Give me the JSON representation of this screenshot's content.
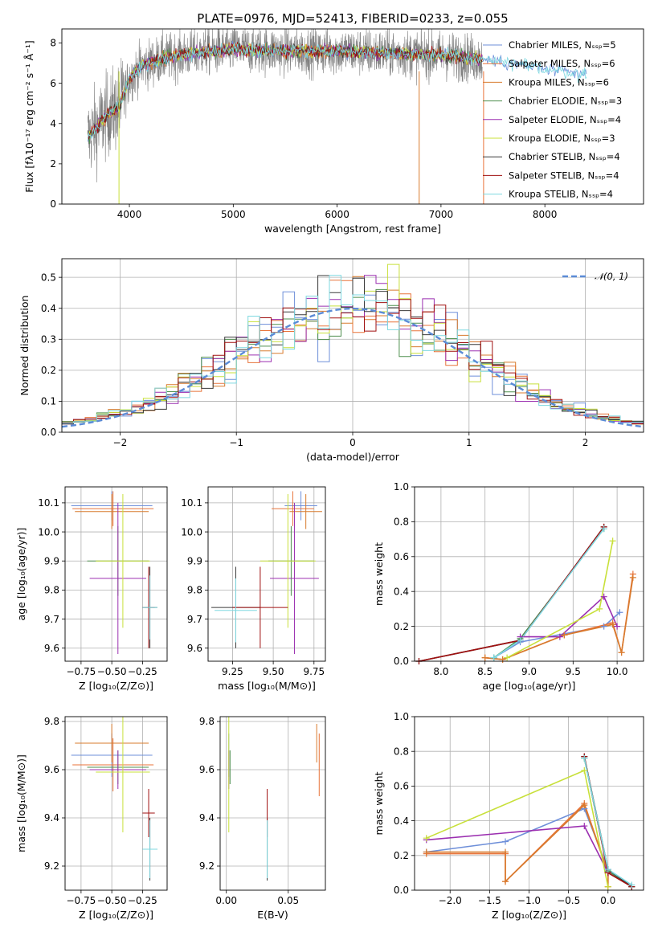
{
  "colors": [
    "#6e8fd9",
    "#e8733a",
    "#d87b2e",
    "#4f8f4f",
    "#9b2fb0",
    "#c8e03a",
    "#3a3a3a",
    "#a01010",
    "#7ed8e0"
  ],
  "chart_data": [
    {
      "id": "spectrum",
      "type": "line",
      "title": "PLATE=0976, MJD=52413, FIBERID=0233, z=0.055",
      "xlabel": "wavelength [Angstrom, rest frame]",
      "ylabel": "Flux [fλ10⁻¹⁷ erg cm⁻² s⁻¹ Å⁻¹]",
      "xlim": [
        3350,
        8950
      ],
      "ylim": [
        0,
        8.7
      ],
      "xticks": [
        4000,
        5000,
        6000,
        7000,
        8000
      ],
      "yticks": [
        0,
        2,
        4,
        6,
        8
      ],
      "legend_position": "upper-right",
      "series": [
        {
          "name": "Chabrier MILES, Nₛₛₚ=5"
        },
        {
          "name": "Salpeter MILES, Nₛₛₚ=6"
        },
        {
          "name": "Kroupa MILES, Nₛₛₚ=6"
        },
        {
          "name": "Chabrier ELODIE, Nₛₛₚ=3"
        },
        {
          "name": "Salpeter ELODIE, Nₛₛₚ=4"
        },
        {
          "name": "Kroupa ELODIE, Nₛₛₚ=3"
        },
        {
          "name": "Chabrier STELIB, Nₛₛₚ=4"
        },
        {
          "name": "Salpeter STELIB, Nₛₛₚ=4"
        },
        {
          "name": "Kroupa STELIB, Nₛₛₚ=4"
        }
      ],
      "continuum": {
        "x": [
          3600,
          3700,
          3800,
          3900,
          4000,
          4100,
          4300,
          4600,
          5000,
          5500,
          6000,
          6500,
          7000,
          7400,
          7900,
          8400
        ],
        "y": [
          3.3,
          3.9,
          4.5,
          4.8,
          6.2,
          6.8,
          7.2,
          7.5,
          7.7,
          7.6,
          7.6,
          7.5,
          7.4,
          7.2,
          6.8,
          6.4
        ]
      }
    },
    {
      "id": "residuals",
      "type": "histogram",
      "xlabel": "(data-model)/error",
      "ylabel": "Normed distribution",
      "xlim": [
        -2.5,
        2.5
      ],
      "ylim": [
        0,
        0.56
      ],
      "xticks": [
        -2,
        -1,
        0,
        1,
        2
      ],
      "yticks": [
        0.0,
        0.1,
        0.2,
        0.3,
        0.4,
        0.5
      ],
      "legend": "𝒩(0, 1)",
      "legend_position": "upper-right",
      "bin_width": 0.1,
      "bin_start": -2.5
    },
    {
      "id": "age-vs-Z",
      "type": "errorbar",
      "xlabel": "Z [log₁₀(Z/Z⊙)]",
      "ylabel": "age  [log₁₀(age/yr)]",
      "xlim": [
        -0.88,
        -0.05
      ],
      "ylim": [
        9.555,
        10.155
      ],
      "xticks": [
        -0.75,
        -0.5,
        -0.25
      ],
      "yticks": [
        9.6,
        9.7,
        9.8,
        9.9,
        10.0,
        10.1
      ],
      "points": [
        {
          "x": -0.5,
          "y": 10.09,
          "xerr": 0.33,
          "yerr": 0.05
        },
        {
          "x": -0.49,
          "y": 10.08,
          "xerr": 0.33,
          "yerr": 0.06
        },
        {
          "x": -0.5,
          "y": 10.07,
          "xerr": 0.3,
          "yerr": 0.06
        },
        {
          "x": -0.45,
          "y": 9.9,
          "xerr": 0.25,
          "yerr": 0.12
        },
        {
          "x": -0.45,
          "y": 9.84,
          "xerr": 0.23,
          "yerr": 0.26
        },
        {
          "x": -0.41,
          "y": 9.9,
          "xerr": 0.22,
          "yerr": 0.23
        },
        {
          "x": -0.19,
          "y": 9.74,
          "xerr": 0.06,
          "yerr": 0.14
        },
        {
          "x": -0.2,
          "y": 9.74,
          "xerr": 0.05,
          "yerr": 0.14
        },
        {
          "x": -0.19,
          "y": 9.74,
          "xerr": 0.06,
          "yerr": 0.11
        }
      ]
    },
    {
      "id": "age-vs-mass",
      "type": "errorbar",
      "xlabel": "mass [log₁₀(M/M⊙)]",
      "ylabel": "",
      "xlim": [
        9.1,
        9.82
      ],
      "ylim": [
        9.555,
        10.155
      ],
      "xticks": [
        9.25,
        9.5,
        9.75
      ],
      "yticks": [
        9.6,
        9.7,
        9.8,
        9.9,
        10.0,
        10.1
      ],
      "points": [
        {
          "x": 9.67,
          "y": 10.09,
          "xerr": 0.1,
          "yerr": 0.05
        },
        {
          "x": 9.62,
          "y": 10.08,
          "xerr": 0.13,
          "yerr": 0.06
        },
        {
          "x": 9.7,
          "y": 10.07,
          "xerr": 0.1,
          "yerr": 0.06
        },
        {
          "x": 9.61,
          "y": 9.9,
          "xerr": 0.14,
          "yerr": 0.12
        },
        {
          "x": 9.63,
          "y": 9.84,
          "xerr": 0.15,
          "yerr": 0.26
        },
        {
          "x": 9.59,
          "y": 9.9,
          "xerr": 0.17,
          "yerr": 0.23
        },
        {
          "x": 9.27,
          "y": 9.74,
          "xerr": 0.15,
          "yerr": 0.14
        },
        {
          "x": 9.42,
          "y": 9.74,
          "xerr": 0.17,
          "yerr": 0.14
        },
        {
          "x": 9.27,
          "y": 9.73,
          "xerr": 0.13,
          "yerr": 0.11
        }
      ]
    },
    {
      "id": "weight-vs-age",
      "type": "line",
      "xlabel": "age  [log₁₀(age/yr)]",
      "ylabel": "mass weight",
      "xlim": [
        7.7,
        10.3
      ],
      "ylim": [
        0,
        1
      ],
      "xticks": [
        8.0,
        8.5,
        9.0,
        9.5,
        10.0
      ],
      "yticks": [
        0.0,
        0.2,
        0.4,
        0.6,
        0.8,
        1.0
      ],
      "series": [
        {
          "x": [
            8.6,
            8.9,
            9.85,
            10.03
          ],
          "y": [
            0.02,
            0.11,
            0.2,
            0.28
          ]
        },
        {
          "x": [
            8.5,
            8.7,
            9.4,
            9.95,
            10.05,
            10.18
          ],
          "y": [
            0.02,
            0.01,
            0.15,
            0.22,
            0.05,
            0.5
          ]
        },
        {
          "x": [
            8.5,
            8.7,
            9.4,
            9.95,
            10.05,
            10.18
          ],
          "y": [
            0.02,
            0.01,
            0.15,
            0.21,
            0.05,
            0.48
          ]
        },
        {
          "x": [
            8.6,
            8.9,
            9.85
          ],
          "y": [
            0.02,
            0.13,
            0.76
          ]
        },
        {
          "x": [
            8.9,
            9.35,
            9.85,
            10.0
          ],
          "y": [
            0.14,
            0.14,
            0.37,
            0.2
          ]
        },
        {
          "x": [
            8.75,
            9.8,
            9.95
          ],
          "y": [
            0.02,
            0.3,
            0.69
          ]
        },
        {
          "x": [
            7.75,
            8.9,
            9.85
          ],
          "y": [
            0.0,
            0.12,
            0.77
          ]
        },
        {
          "x": [
            7.75,
            8.9,
            9.85
          ],
          "y": [
            0.0,
            0.12,
            0.77
          ]
        },
        {
          "x": [
            8.6,
            8.9,
            9.85
          ],
          "y": [
            0.02,
            0.12,
            0.76
          ]
        }
      ]
    },
    {
      "id": "mass-vs-Z",
      "type": "errorbar",
      "xlabel": "Z [log₁₀(Z/Z⊙)]",
      "ylabel": "mass [log₁₀(M/M⊙)]",
      "xlim": [
        -0.88,
        -0.05
      ],
      "ylim": [
        9.1,
        9.82
      ],
      "xticks": [
        -0.75,
        -0.5,
        -0.25
      ],
      "yticks": [
        9.2,
        9.4,
        9.6,
        9.8
      ],
      "points": [
        {
          "x": -0.5,
          "y": 9.66,
          "xerr": 0.33,
          "yerr": 0.09
        },
        {
          "x": -0.49,
          "y": 9.62,
          "xerr": 0.33,
          "yerr": 0.11
        },
        {
          "x": -0.5,
          "y": 9.71,
          "xerr": 0.3,
          "yerr": 0.08
        },
        {
          "x": -0.45,
          "y": 9.61,
          "xerr": 0.25,
          "yerr": 0.07
        },
        {
          "x": -0.45,
          "y": 9.6,
          "xerr": 0.23,
          "yerr": 0.08
        },
        {
          "x": -0.41,
          "y": 9.59,
          "xerr": 0.22,
          "yerr": 0.25
        },
        {
          "x": -0.19,
          "y": 9.27,
          "xerr": 0.06,
          "yerr": 0.13
        },
        {
          "x": -0.2,
          "y": 9.42,
          "xerr": 0.05,
          "yerr": 0.1
        },
        {
          "x": -0.19,
          "y": 9.27,
          "xerr": 0.06,
          "yerr": 0.12
        }
      ]
    },
    {
      "id": "mass-vs-ebv",
      "type": "errorbar",
      "xlabel": "E(B-V)",
      "ylabel": "",
      "xlim": [
        -0.005,
        0.08
      ],
      "ylim": [
        9.1,
        9.82
      ],
      "xticks": [
        0.0,
        0.05
      ],
      "yticks": [
        9.2,
        9.4,
        9.6,
        9.8
      ],
      "points": [
        {
          "x": 0.002,
          "y": 9.66,
          "xerr": 0,
          "yerr": 0.09
        },
        {
          "x": 0.075,
          "y": 9.62,
          "xerr": 0,
          "yerr": 0.13
        },
        {
          "x": 0.073,
          "y": 9.71,
          "xerr": 0,
          "yerr": 0.08
        },
        {
          "x": 0.003,
          "y": 9.61,
          "xerr": 0,
          "yerr": 0.07
        },
        {
          "x": 0.002,
          "y": 9.6,
          "xerr": 0,
          "yerr": 0.08
        },
        {
          "x": 0.002,
          "y": 9.59,
          "xerr": 0,
          "yerr": 0.25
        },
        {
          "x": 0.033,
          "y": 9.27,
          "xerr": 0,
          "yerr": 0.13
        },
        {
          "x": 0.033,
          "y": 9.42,
          "xerr": 0,
          "yerr": 0.1
        },
        {
          "x": 0.033,
          "y": 9.27,
          "xerr": 0,
          "yerr": 0.12
        }
      ]
    },
    {
      "id": "weight-vs-Z",
      "type": "line",
      "xlabel": "Z [log₁₀(Z/Z⊙)]",
      "ylabel": "mass weight",
      "xlim": [
        -2.45,
        0.45
      ],
      "ylim": [
        0,
        1
      ],
      "xticks": [
        -2.0,
        -1.5,
        -1.0,
        -0.5,
        0.0
      ],
      "yticks": [
        0.0,
        0.2,
        0.4,
        0.6,
        0.8,
        1.0
      ],
      "series": [
        {
          "x": [
            -2.3,
            -1.3,
            -0.3,
            0.0,
            0.3
          ],
          "y": [
            0.22,
            0.28,
            0.47,
            0.12,
            0.02
          ]
        },
        {
          "x": [
            -2.3,
            -1.3,
            -1.3,
            -0.3,
            0.0,
            0.0
          ],
          "y": [
            0.21,
            0.21,
            0.05,
            0.5,
            0.1,
            0.02
          ]
        },
        {
          "x": [
            -2.3,
            -1.3,
            -1.3,
            -0.3,
            0.0,
            0.0
          ],
          "y": [
            0.22,
            0.22,
            0.05,
            0.49,
            0.1,
            0.02
          ]
        },
        {
          "x": [
            -0.3,
            0.0,
            0.3
          ],
          "y": [
            0.76,
            0.11,
            0.02
          ]
        },
        {
          "x": [
            -2.3,
            -0.3,
            0.0
          ],
          "y": [
            0.29,
            0.37,
            0.1
          ]
        },
        {
          "x": [
            -2.3,
            -0.3,
            0.0
          ],
          "y": [
            0.3,
            0.69,
            0.02
          ]
        },
        {
          "x": [
            -0.3,
            0.0,
            0.3
          ],
          "y": [
            0.77,
            0.12,
            0.02
          ]
        },
        {
          "x": [
            -0.3,
            0.0,
            0.3
          ],
          "y": [
            0.77,
            0.1,
            0.02
          ]
        },
        {
          "x": [
            -0.3,
            0.0,
            0.3
          ],
          "y": [
            0.76,
            0.12,
            0.03
          ]
        }
      ]
    }
  ]
}
